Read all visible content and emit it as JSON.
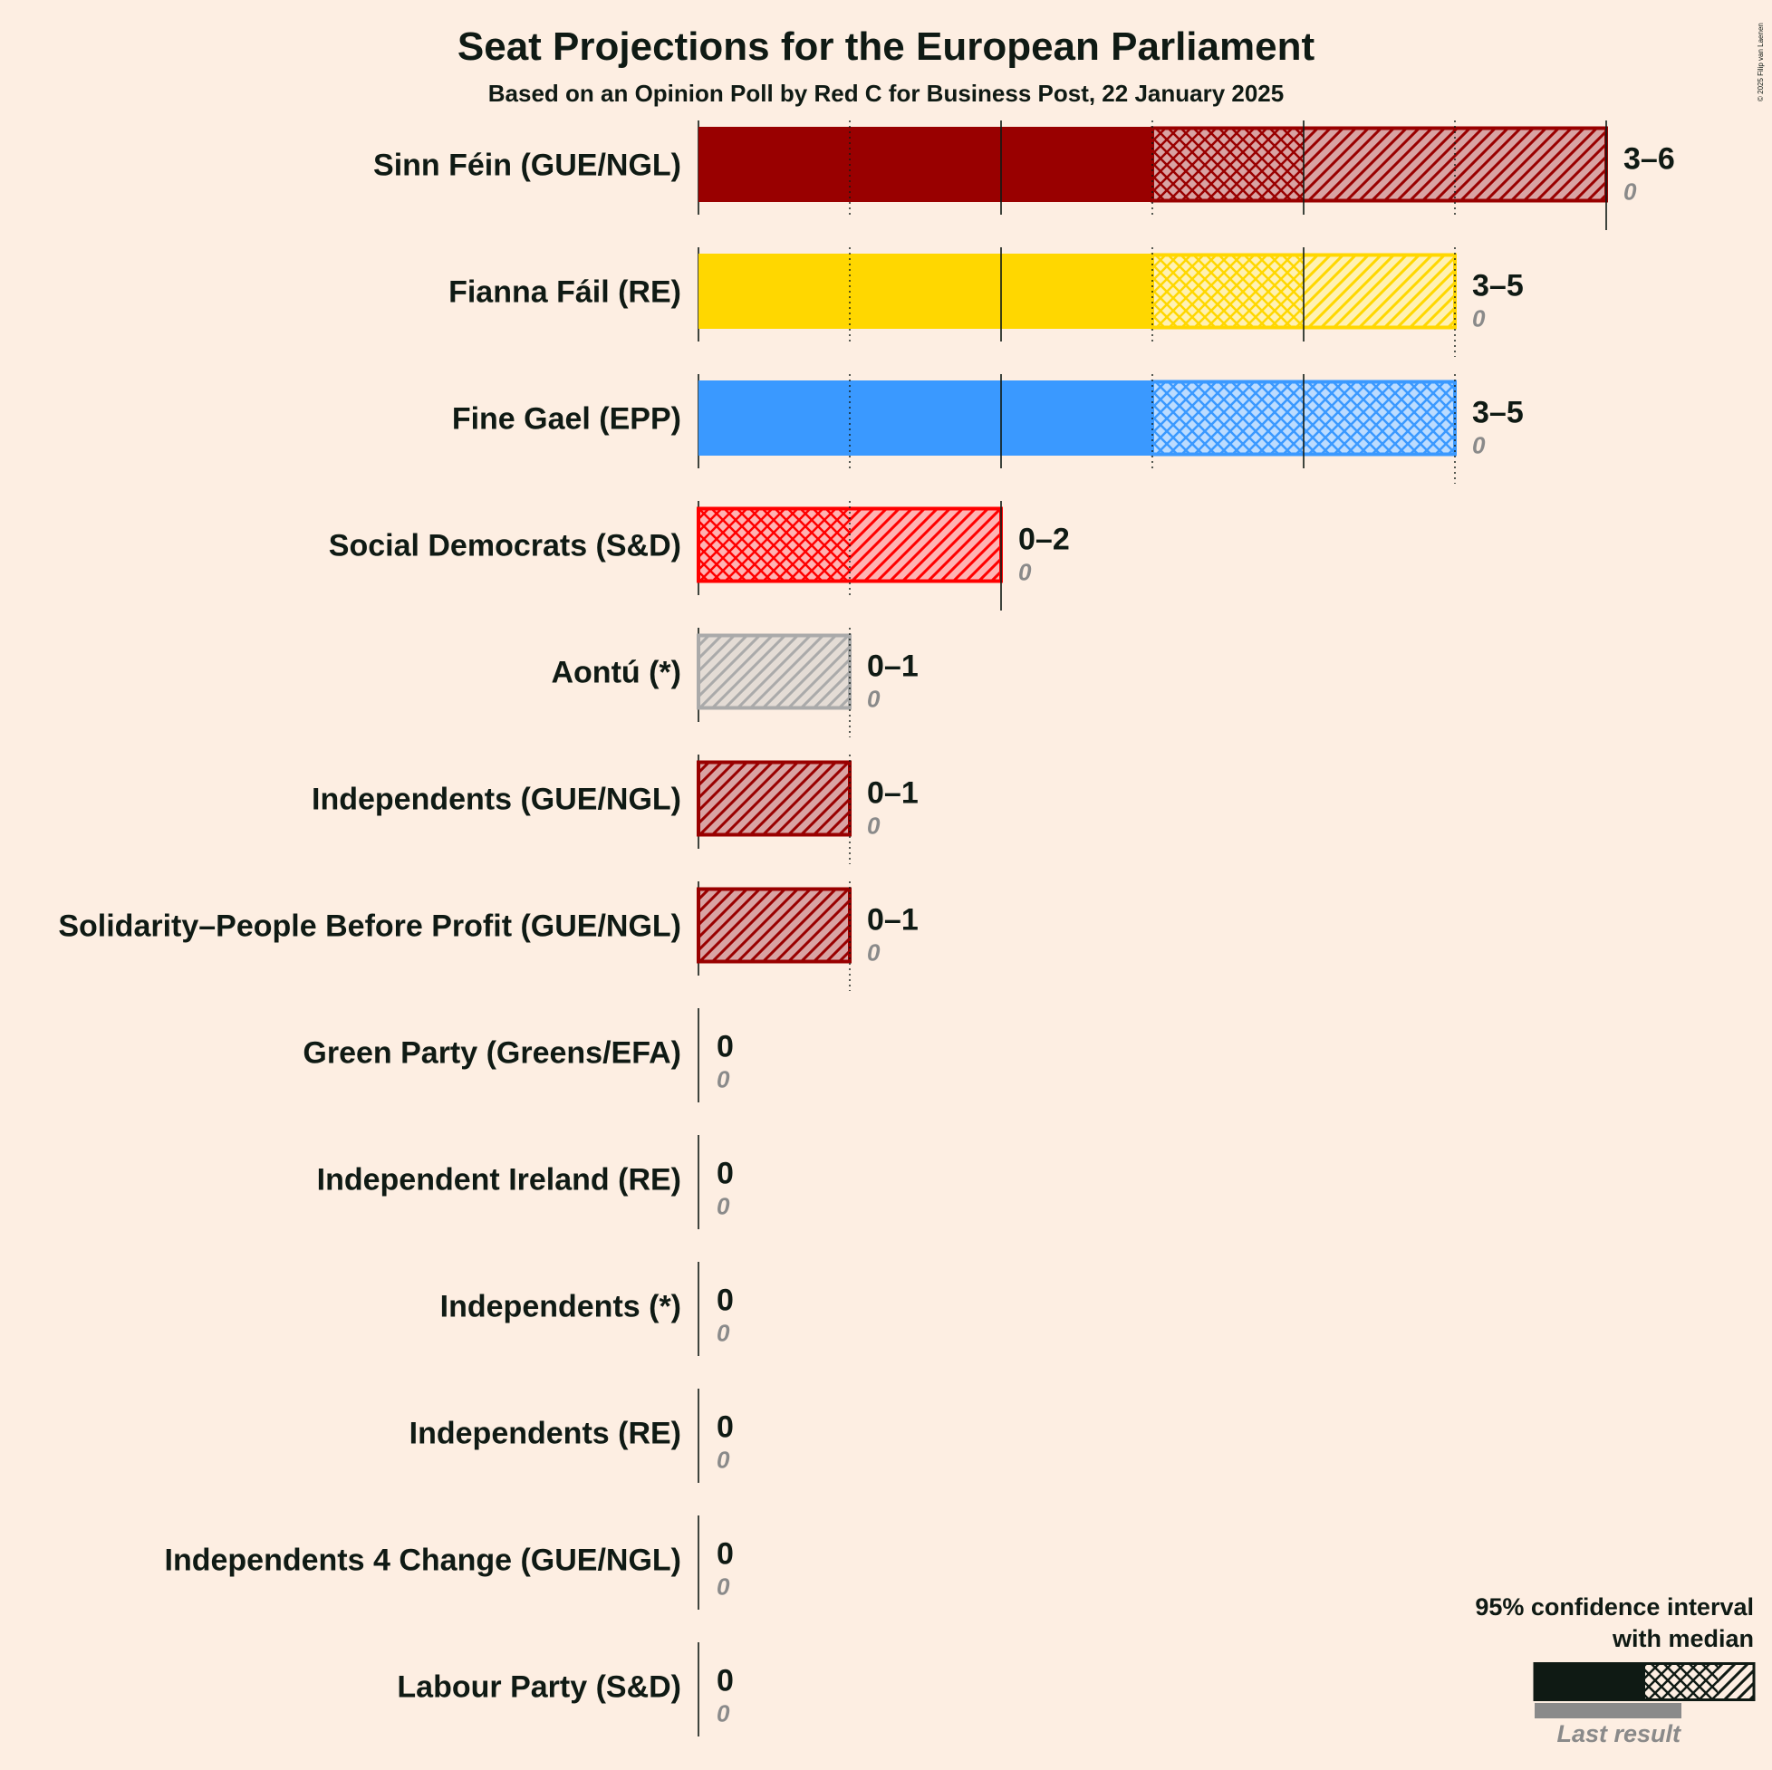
{
  "page": {
    "title": "Seat Projections for the European Parliament",
    "subtitle": "Based on an Opinion Poll by Red C for Business Post, 22 January 2025",
    "copyright": "© 2025 Filip van Laenen"
  },
  "legend": {
    "line1": "95% confidence interval",
    "line2": "with median",
    "last_result": "Last result"
  },
  "colors": {
    "background": "#FDEEE2",
    "text": "#0f1a14",
    "last_result": "#8a8a8a"
  },
  "chart_data": {
    "type": "bar",
    "orientation": "horizontal",
    "xlim": [
      0,
      6
    ],
    "grid": true,
    "legend_position": "bottom-right",
    "categories": [
      "Sinn Féin (GUE/NGL)",
      "Fianna Fáil (RE)",
      "Fine Gael (EPP)",
      "Social Democrats (S&D)",
      "Aontú (*)",
      "Independents (GUE/NGL)",
      "Solidarity–People Before Profit (GUE/NGL)",
      "Green Party (Greens/EFA)",
      "Independent Ireland (RE)",
      "Independents (*)",
      "Independents (RE)",
      "Independents 4 Change (GUE/NGL)",
      "Labour Party (S&D)"
    ],
    "parties": [
      {
        "name": "Sinn Féin (GUE/NGL)",
        "low": 3,
        "median": 4,
        "high": 6,
        "range_label": "3–6",
        "last_result": 0,
        "last_label": "0",
        "color": "#990000",
        "light": "#d9a3a3"
      },
      {
        "name": "Fianna Fáil (RE)",
        "low": 3,
        "median": 4,
        "high": 5,
        "range_label": "3–5",
        "last_result": 0,
        "last_label": "0",
        "color": "#FFD700",
        "light": "#fff1b3"
      },
      {
        "name": "Fine Gael (EPP)",
        "low": 3,
        "median": 5,
        "high": 5,
        "range_label": "3–5",
        "last_result": 0,
        "last_label": "0",
        "color": "#3A99FF",
        "light": "#bcdcff"
      },
      {
        "name": "Social Democrats (S&D)",
        "low": 0,
        "median": 1,
        "high": 2,
        "range_label": "0–2",
        "last_result": 0,
        "last_label": "0",
        "color": "#FF0000",
        "light": "#ffb3b3"
      },
      {
        "name": "Aontú (*)",
        "low": 0,
        "median": 0,
        "high": 1,
        "range_label": "0–1",
        "last_result": 0,
        "last_label": "0",
        "color": "#AAAAAA",
        "light": "#e4dcd5"
      },
      {
        "name": "Independents (GUE/NGL)",
        "low": 0,
        "median": 0,
        "high": 1,
        "range_label": "0–1",
        "last_result": 0,
        "last_label": "0",
        "color": "#990000",
        "light": "#d9a3a3"
      },
      {
        "name": "Solidarity–People Before Profit (GUE/NGL)",
        "low": 0,
        "median": 0,
        "high": 1,
        "range_label": "0–1",
        "last_result": 0,
        "last_label": "0",
        "color": "#990000",
        "light": "#d9a3a3"
      },
      {
        "name": "Green Party (Greens/EFA)",
        "low": 0,
        "median": 0,
        "high": 0,
        "range_label": "0",
        "last_result": 0,
        "last_label": "0",
        "color": "#0f1a14",
        "light": "#cccccc"
      },
      {
        "name": "Independent Ireland (RE)",
        "low": 0,
        "median": 0,
        "high": 0,
        "range_label": "0",
        "last_result": 0,
        "last_label": "0",
        "color": "#0f1a14",
        "light": "#cccccc"
      },
      {
        "name": "Independents (*)",
        "low": 0,
        "median": 0,
        "high": 0,
        "range_label": "0",
        "last_result": 0,
        "last_label": "0",
        "color": "#0f1a14",
        "light": "#cccccc"
      },
      {
        "name": "Independents (RE)",
        "low": 0,
        "median": 0,
        "high": 0,
        "range_label": "0",
        "last_result": 0,
        "last_label": "0",
        "color": "#0f1a14",
        "light": "#cccccc"
      },
      {
        "name": "Independents 4 Change (GUE/NGL)",
        "low": 0,
        "median": 0,
        "high": 0,
        "range_label": "0",
        "last_result": 0,
        "last_label": "0",
        "color": "#0f1a14",
        "light": "#cccccc"
      },
      {
        "name": "Labour Party (S&D)",
        "low": 0,
        "median": 0,
        "high": 0,
        "range_label": "0",
        "last_result": 0,
        "last_label": "0",
        "color": "#0f1a14",
        "light": "#cccccc"
      }
    ]
  }
}
